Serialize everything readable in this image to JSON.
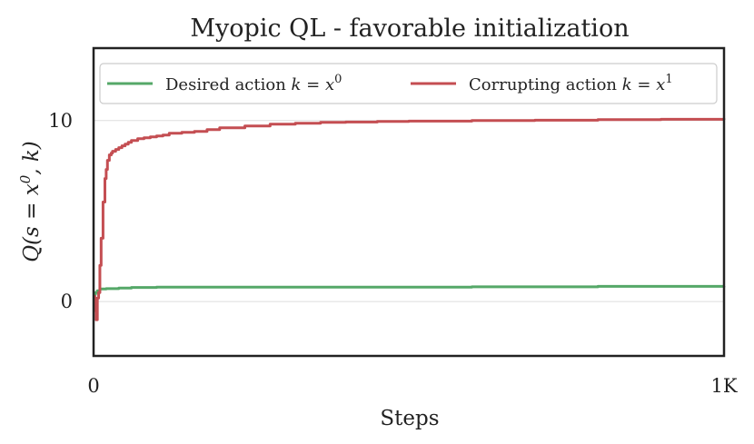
{
  "chart_data": {
    "type": "line",
    "title": "Myopic QL - favorable initialization",
    "xlabel": "Steps",
    "ylabel": "Q(s = x0, k)",
    "xlim": [
      0,
      1000
    ],
    "ylim": [
      -3,
      14
    ],
    "x_ticks": [
      {
        "value": 0,
        "label": "0"
      },
      {
        "value": 1000,
        "label": "1K"
      }
    ],
    "y_ticks": [
      {
        "value": 0,
        "label": "0"
      },
      {
        "value": 10,
        "label": "10"
      }
    ],
    "grid": true,
    "legend_position": "top",
    "series": [
      {
        "name": "Desired action k = x0",
        "color": "#55a868",
        "x": [
          0,
          3,
          6,
          10,
          20,
          40,
          60,
          100,
          200,
          400,
          600,
          800,
          1000
        ],
        "y": [
          0.4,
          0.5,
          0.6,
          0.7,
          0.72,
          0.75,
          0.78,
          0.8,
          0.8,
          0.8,
          0.82,
          0.84,
          0.85
        ]
      },
      {
        "name": "Corrupting action k = x1",
        "color": "#c44e52",
        "x": [
          0,
          2,
          4,
          6,
          8,
          10,
          12,
          15,
          18,
          20,
          22,
          25,
          28,
          30,
          35,
          40,
          45,
          50,
          55,
          60,
          70,
          80,
          90,
          100,
          110,
          120,
          140,
          160,
          180,
          200,
          240,
          280,
          320,
          360,
          400,
          450,
          500,
          600,
          700,
          800,
          900,
          1000
        ],
        "y": [
          0.3,
          -0.5,
          -1.0,
          0.2,
          0.5,
          2.0,
          3.5,
          5.5,
          6.8,
          7.3,
          7.8,
          8.1,
          8.2,
          8.3,
          8.4,
          8.5,
          8.6,
          8.7,
          8.8,
          8.9,
          9.0,
          9.05,
          9.1,
          9.15,
          9.2,
          9.3,
          9.35,
          9.4,
          9.5,
          9.6,
          9.7,
          9.8,
          9.85,
          9.9,
          9.92,
          9.95,
          9.97,
          10.0,
          10.02,
          10.05,
          10.07,
          10.05
        ]
      }
    ]
  }
}
